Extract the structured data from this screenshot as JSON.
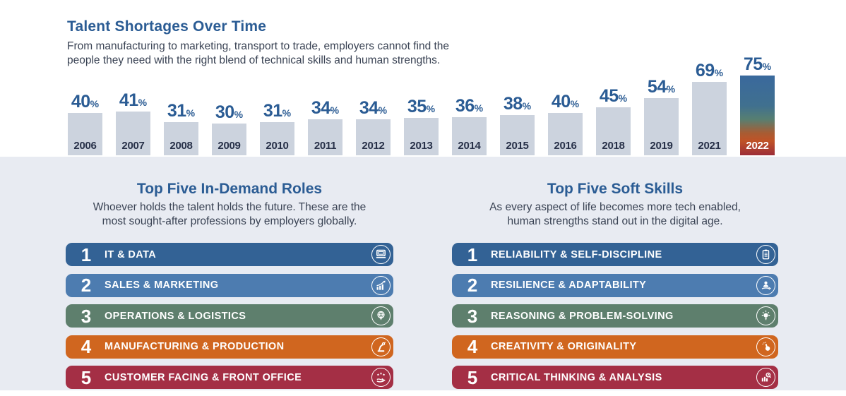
{
  "header": {
    "title": "Talent Shortages Over Time",
    "subtitle_line1": "From manufacturing to marketing, transport to trade, employers cannot find the",
    "subtitle_line2": "people they need with the right blend of technical skills and human strengths."
  },
  "chart_data": {
    "type": "bar",
    "title": "Talent Shortages Over Time",
    "categories": [
      "2006",
      "2007",
      "2008",
      "2009",
      "2010",
      "2011",
      "2012",
      "2013",
      "2014",
      "2015",
      "2016",
      "2018",
      "2019",
      "2021",
      "2022"
    ],
    "values": [
      40,
      41,
      31,
      30,
      31,
      34,
      34,
      35,
      36,
      38,
      40,
      45,
      54,
      69,
      75
    ],
    "unit": "%",
    "ylim": [
      0,
      80
    ],
    "grid": false,
    "bar_color": "#ccd3de",
    "value_label_color": "#2b5c94",
    "year_label_color": "#283149",
    "highlight_year": "2022",
    "highlight_gradient": [
      "#3a699d 0%",
      "#40708f 38%",
      "#577f71 55%",
      "#a85c33 72%",
      "#c05327 82%",
      "#9c2d38 100%"
    ]
  },
  "sections": [
    {
      "title": "Top Five In-Demand Roles",
      "subtitle_line1": "Whoever holds the talent holds the future. These are the",
      "subtitle_line2": "most sought-after professions by employers globally.",
      "items": [
        {
          "rank": "1",
          "label": "IT & DATA",
          "icon": "laptop-icon",
          "color": "#336295"
        },
        {
          "rank": "2",
          "label": "SALES & MARKETING",
          "icon": "growth-chart-icon",
          "color": "#4d7cb0"
        },
        {
          "rank": "3",
          "label": "OPERATIONS & LOGISTICS",
          "icon": "location-pin-icon",
          "color": "#5e7f6d"
        },
        {
          "rank": "4",
          "label": "MANUFACTURING & PRODUCTION",
          "icon": "robot-arm-icon",
          "color": "#d0661f"
        },
        {
          "rank": "5",
          "label": "CUSTOMER FACING & FRONT OFFICE",
          "icon": "service-hand-icon",
          "color": "#a42f45"
        }
      ]
    },
    {
      "title": "Top Five Soft Skills",
      "subtitle_line1": "As every aspect of life becomes more tech enabled,",
      "subtitle_line2": "human strengths stand out in the digital age.",
      "items": [
        {
          "rank": "1",
          "label": "RELIABILITY & SELF-DISCIPLINE",
          "icon": "clipboard-icon",
          "color": "#336295"
        },
        {
          "rank": "2",
          "label": "RESILIENCE & ADAPTABILITY",
          "icon": "person-adapt-icon",
          "color": "#4d7cb0"
        },
        {
          "rank": "3",
          "label": "REASONING & PROBLEM-SOLVING",
          "icon": "lightbulb-icon",
          "color": "#5e7f6d"
        },
        {
          "rank": "4",
          "label": "CREATIVITY & ORIGINALITY",
          "icon": "hand-click-icon",
          "color": "#d0661f"
        },
        {
          "rank": "5",
          "label": "CRITICAL THINKING & ANALYSIS",
          "icon": "chart-magnifier-icon",
          "color": "#a42f45"
        }
      ]
    }
  ],
  "style": {
    "accent_blue": "#2b5c94",
    "body_text": "#3a4354",
    "band_background": "#e8ebf2"
  }
}
